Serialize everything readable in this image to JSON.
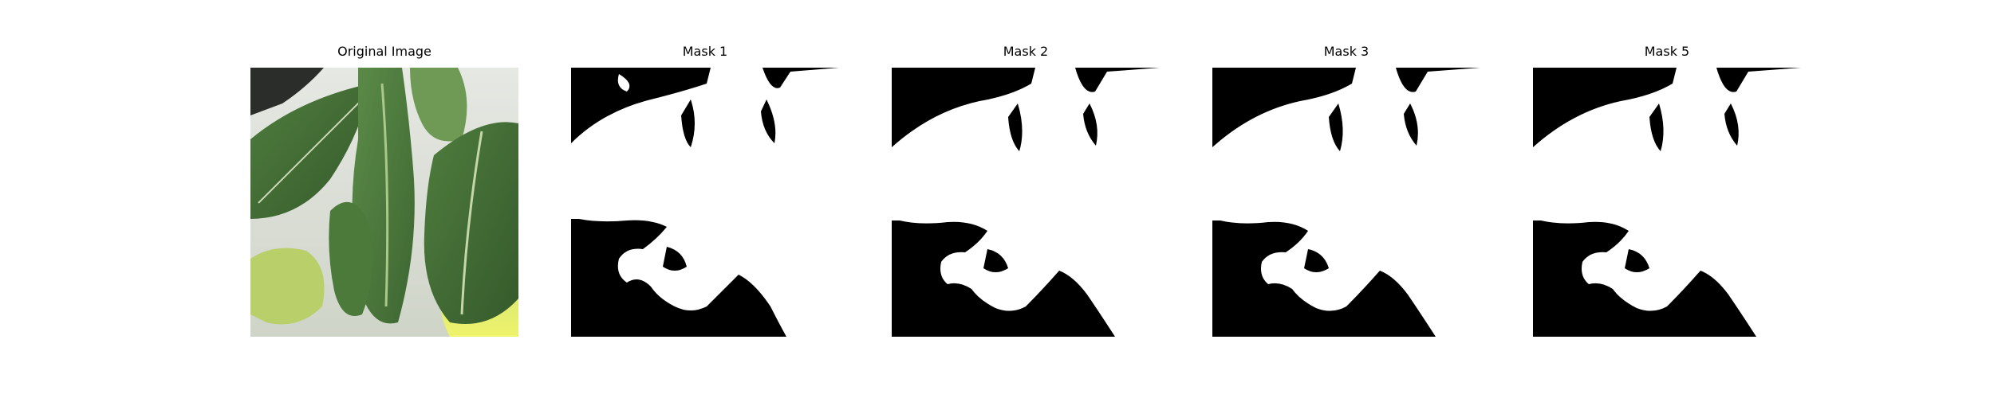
{
  "panels": [
    {
      "title": "Original Image",
      "kind": "photo"
    },
    {
      "title": "Mask 1",
      "kind": "mask"
    },
    {
      "title": "Mask 2",
      "kind": "mask"
    },
    {
      "title": "Mask 3",
      "kind": "mask"
    },
    {
      "title": "Mask 5",
      "kind": "mask"
    }
  ],
  "colors": {
    "mask_foreground": "#ffffff",
    "mask_background": "#000000",
    "leaf_dark": "#3f6a34",
    "leaf_mid": "#5a8a45",
    "leaf_light": "#a9c97a",
    "background_wall": "#d9ddd5",
    "highlight_yellow": "#e8f05a"
  }
}
